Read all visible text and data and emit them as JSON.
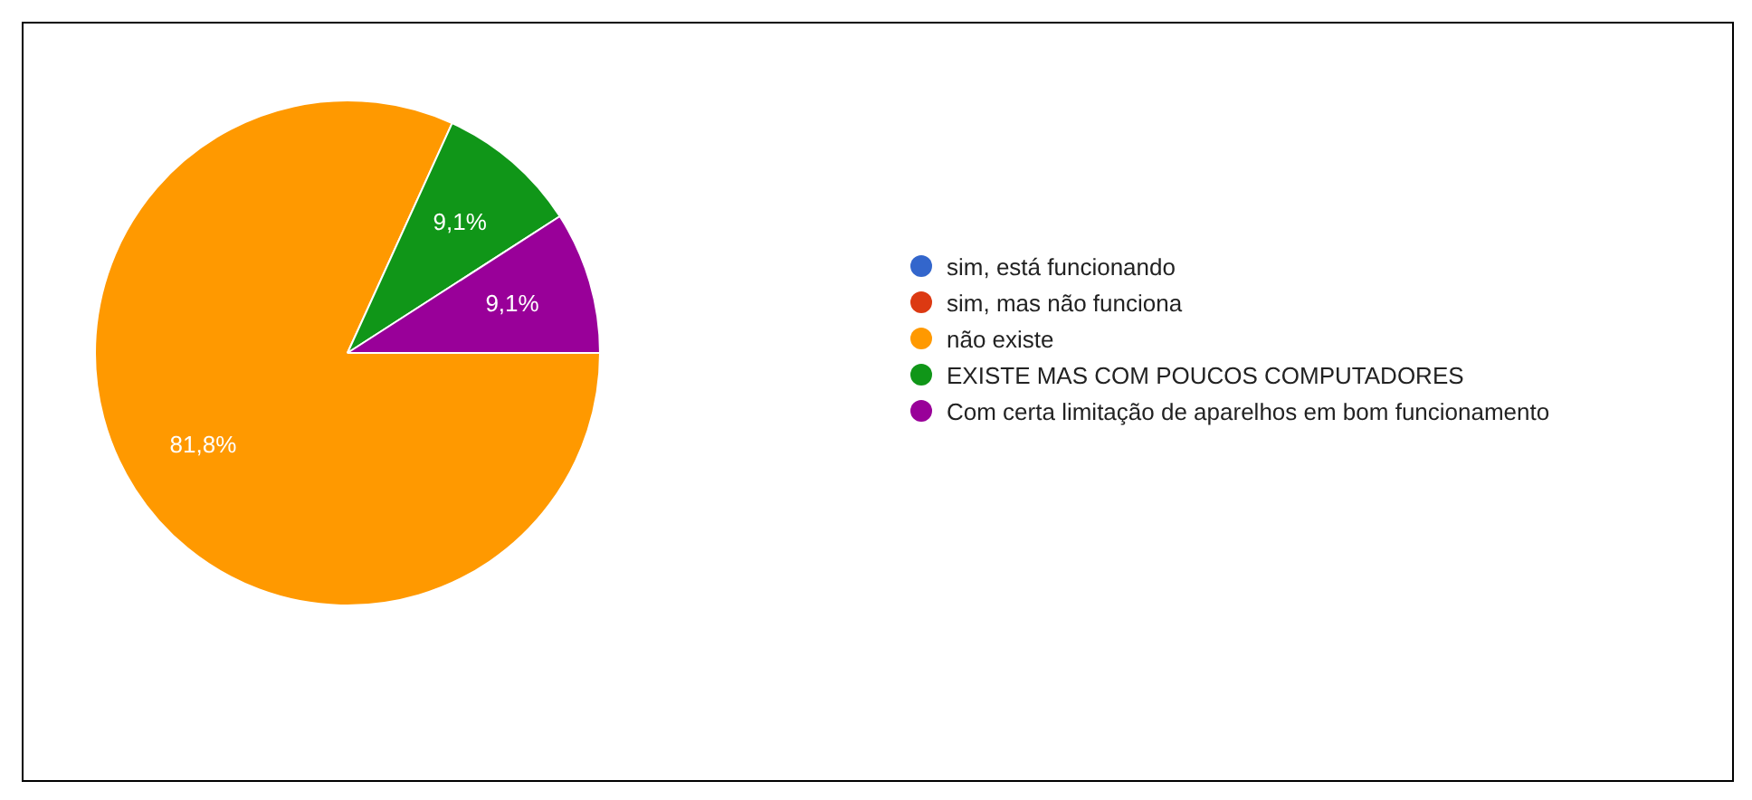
{
  "chart_data": {
    "type": "pie",
    "categories": [
      "sim, está funcionando",
      "sim, mas não funciona",
      "não existe",
      "EXISTE MAS COM POUCOS COMPUTADORES",
      "Com certa limitação de aparelhos em bom funcionamento"
    ],
    "values": [
      0,
      0,
      81.8,
      9.1,
      9.1
    ],
    "colors": [
      "#3366cc",
      "#dc3912",
      "#ff9900",
      "#109618",
      "#990099"
    ],
    "value_labels": [
      null,
      null,
      "81,8%",
      "9,1%",
      "9,1%"
    ],
    "legend": "right"
  }
}
